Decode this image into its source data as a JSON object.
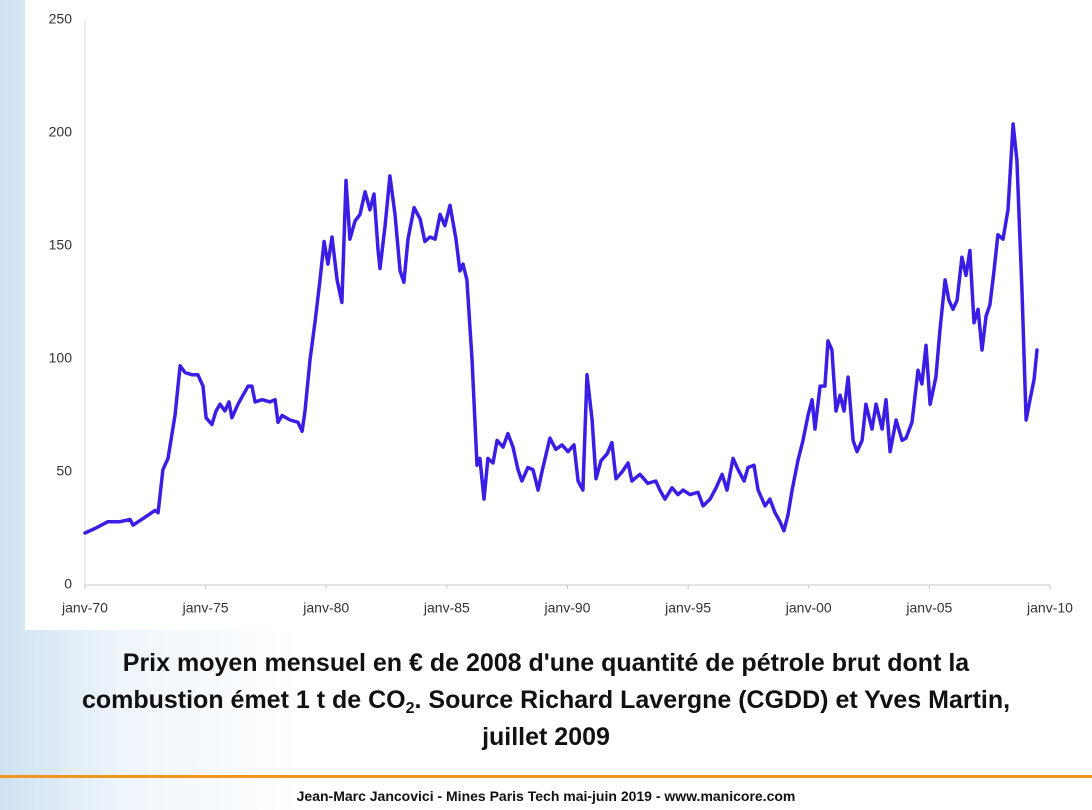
{
  "chart_data": {
    "type": "line",
    "x": [
      1970.0,
      1970.41,
      1970.95,
      1971.45,
      1971.87,
      1971.99,
      1972.49,
      1972.9,
      1973.03,
      1973.23,
      1973.44,
      1973.73,
      1973.94,
      1974.15,
      1974.44,
      1974.68,
      1974.89,
      1975.02,
      1975.26,
      1975.43,
      1975.6,
      1975.8,
      1975.97,
      1976.09,
      1976.34,
      1976.55,
      1976.76,
      1976.92,
      1977.05,
      1977.34,
      1977.67,
      1977.88,
      1978.0,
      1978.17,
      1978.5,
      1978.83,
      1979.0,
      1979.12,
      1979.33,
      1979.54,
      1979.74,
      1979.91,
      1980.07,
      1980.24,
      1980.45,
      1980.65,
      1980.82,
      1980.98,
      1981.19,
      1981.4,
      1981.61,
      1981.81,
      1981.98,
      1982.15,
      1982.23,
      1982.44,
      1982.64,
      1982.85,
      1983.06,
      1983.22,
      1983.39,
      1983.64,
      1983.89,
      1984.09,
      1984.3,
      1984.51,
      1984.72,
      1984.92,
      1985.13,
      1985.38,
      1985.54,
      1985.67,
      1985.83,
      1986.04,
      1986.25,
      1986.37,
      1986.54,
      1986.7,
      1986.91,
      1987.08,
      1987.33,
      1987.53,
      1987.74,
      1987.95,
      1988.11,
      1988.36,
      1988.57,
      1988.78,
      1988.94,
      1989.27,
      1989.52,
      1989.77,
      1990.02,
      1990.27,
      1990.44,
      1990.64,
      1990.81,
      1991.02,
      1991.18,
      1991.39,
      1991.64,
      1991.84,
      1992.01,
      1992.26,
      1992.51,
      1992.67,
      1993.0,
      1993.33,
      1993.66,
      1993.83,
      1994.04,
      1994.33,
      1994.58,
      1994.79,
      1995.08,
      1995.41,
      1995.62,
      1995.91,
      1996.16,
      1996.41,
      1996.61,
      1996.86,
      1997.07,
      1997.32,
      1997.48,
      1997.73,
      1997.9,
      1998.19,
      1998.39,
      1998.6,
      1998.81,
      1998.97,
      1999.14,
      1999.31,
      1999.55,
      1999.76,
      1999.97,
      2000.14,
      2000.26,
      2000.47,
      2000.67,
      2000.8,
      2000.96,
      2001.13,
      2001.3,
      2001.46,
      2001.63,
      2001.84,
      2002.0,
      2002.21,
      2002.37,
      2002.62,
      2002.79,
      2003.04,
      2003.2,
      2003.37,
      2003.62,
      2003.87,
      2004.03,
      2004.28,
      2004.53,
      2004.69,
      2004.86,
      2005.03,
      2005.27,
      2005.44,
      2005.65,
      2005.81,
      2005.98,
      2006.15,
      2006.35,
      2006.52,
      2006.68,
      2006.85,
      2007.02,
      2007.18,
      2007.35,
      2007.51,
      2007.68,
      2007.84,
      2008.05,
      2008.26,
      2008.47,
      2008.63,
      2008.84,
      2009.01,
      2009.17,
      2009.34,
      2009.46
    ],
    "values": [
      23,
      25,
      28,
      28,
      29,
      26.5,
      30,
      33,
      32,
      51,
      56,
      75,
      97,
      94,
      93,
      93,
      88,
      74,
      71,
      77,
      80,
      77,
      81,
      74,
      80,
      84,
      88,
      88,
      81,
      82,
      81,
      82,
      72,
      75,
      73,
      72,
      68,
      77,
      100,
      117,
      135,
      152,
      142,
      154,
      135,
      125,
      179,
      153,
      161,
      164,
      174,
      166,
      173,
      148,
      140,
      159,
      181,
      164,
      139,
      134,
      153,
      167,
      162,
      152,
      154,
      153,
      164,
      159,
      168,
      153,
      139,
      142,
      135,
      100,
      53,
      56,
      38,
      56,
      54,
      64,
      61,
      67,
      61,
      51,
      46,
      52,
      51,
      42,
      50,
      65,
      60,
      62,
      59,
      62,
      46,
      42,
      93,
      73,
      47,
      55,
      58,
      63,
      47,
      50,
      54,
      46,
      49,
      45,
      46,
      42,
      38,
      43,
      40,
      42,
      40,
      41,
      35,
      38,
      43,
      49,
      42,
      56,
      51,
      46,
      52,
      53,
      42,
      35,
      38,
      32,
      28,
      24,
      31,
      42,
      55,
      64,
      75,
      82,
      69,
      88,
      88,
      108,
      104,
      77,
      84,
      77,
      92,
      64,
      59,
      64,
      80,
      69,
      80,
      69,
      82,
      59,
      73,
      64,
      65,
      72,
      95,
      89,
      106,
      80,
      92,
      113,
      135,
      126,
      122,
      126,
      145,
      137,
      148,
      116,
      122,
      104,
      119,
      124,
      139,
      155,
      153,
      166,
      204,
      188,
      130,
      73,
      82,
      91,
      104
    ],
    "color": "#3b1ee6",
    "xlim": [
      1970,
      2010
    ],
    "xticks": [
      {
        "value": 1970,
        "label": "janv-70"
      },
      {
        "value": 1975,
        "label": "janv-75"
      },
      {
        "value": 1980,
        "label": "janv-80"
      },
      {
        "value": 1985,
        "label": "janv-85"
      },
      {
        "value": 1990,
        "label": "janv-90"
      },
      {
        "value": 1995,
        "label": "janv-95"
      },
      {
        "value": 2000,
        "label": "janv-00"
      },
      {
        "value": 2005,
        "label": "janv-05"
      },
      {
        "value": 2010,
        "label": "janv-10"
      }
    ],
    "ylim": [
      0,
      250
    ],
    "yticks": [
      0,
      50,
      100,
      150,
      200,
      250
    ],
    "grid": false
  },
  "caption": {
    "line1": "Prix moyen mensuel en € de 2008 d'une quantité de pétrole brut dont la",
    "line2": "combustion émet 1 t de CO",
    "subscript": "2",
    "line3": ". Source Richard Lavergne (CGDD) et Yves Martin,",
    "line4": "juillet 2009"
  },
  "footer": "Jean-Marc Jancovici - Mines Paris Tech mai-juin 2019 - www.manicore.com"
}
